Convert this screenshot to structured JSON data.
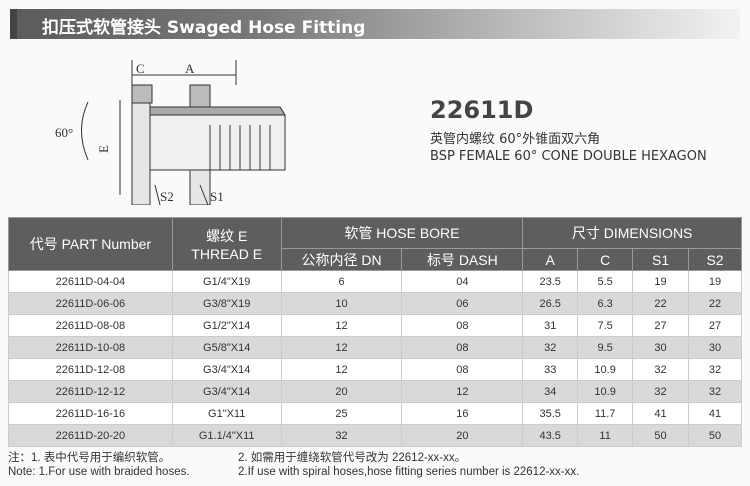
{
  "header": {
    "title": "扣压式软管接头  Swaged Hose Fitting"
  },
  "product": {
    "model": "22611D",
    "desc_cn": "英管内螺纹 60°外锥面双六角",
    "desc_en": "BSP FEMALE 60° CONE DOUBLE HEXAGON"
  },
  "drawing": {
    "labels": {
      "c": "C",
      "a": "A",
      "e": "E",
      "angle": "60°",
      "s1": "S1",
      "s2": "S2"
    }
  },
  "table": {
    "headers": {
      "part": "代号 PART Number",
      "thread_cn": "螺纹 E",
      "thread_en": "THREAD E",
      "hose_bore": "软管 HOSE BORE",
      "dimensions": "尺寸 DIMENSIONS",
      "dn": "公称内径 DN",
      "dash": "标号 DASH",
      "a": "A",
      "c": "C",
      "s1": "S1",
      "s2": "S2"
    },
    "rows": [
      [
        "22611D-04-04",
        "G1/4\"X19",
        "6",
        "04",
        "23.5",
        "5.5",
        "19",
        "19"
      ],
      [
        "22611D-06-06",
        "G3/8\"X19",
        "10",
        "06",
        "26.5",
        "6.3",
        "22",
        "22"
      ],
      [
        "22611D-08-08",
        "G1/2\"X14",
        "12",
        "08",
        "31",
        "7.5",
        "27",
        "27"
      ],
      [
        "22611D-10-08",
        "G5/8\"X14",
        "12",
        "08",
        "32",
        "9.5",
        "30",
        "30"
      ],
      [
        "22611D-12-08",
        "G3/4\"X14",
        "12",
        "08",
        "33",
        "10.9",
        "32",
        "32"
      ],
      [
        "22611D-12-12",
        "G3/4\"X14",
        "20",
        "12",
        "34",
        "10.9",
        "32",
        "32"
      ],
      [
        "22611D-16-16",
        "G1\"X11",
        "25",
        "16",
        "35.5",
        "11.7",
        "41",
        "41"
      ],
      [
        "22611D-20-20",
        "G1.1/4\"X11",
        "32",
        "20",
        "43.5",
        "11",
        "50",
        "50"
      ]
    ]
  },
  "notes": {
    "cn1": "注：1. 表中代号用于编织软管。",
    "cn2": "2. 如需用于缠绕软管代号改为 22612-xx-xx。",
    "en1": "Note: 1.For use with braided hoses.",
    "en2": "2.If use with spiral hoses,hose fitting series number is 22612-xx-xx."
  }
}
